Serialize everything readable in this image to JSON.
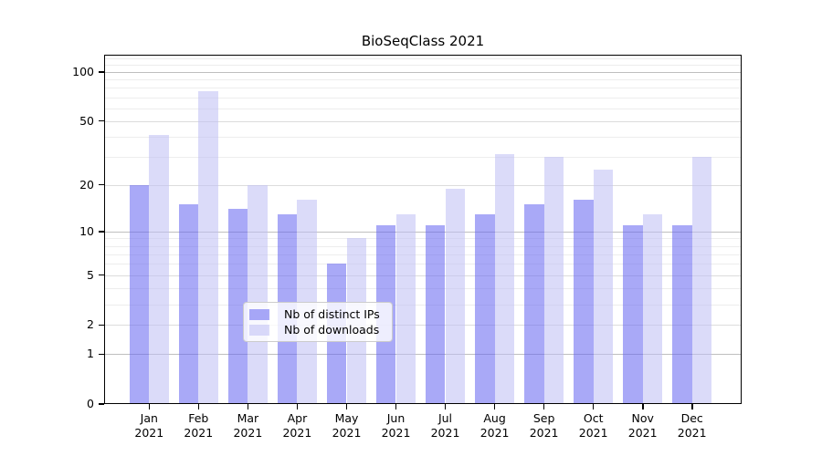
{
  "chart_data": {
    "type": "bar",
    "title": "BioSeqClass 2021",
    "x_months": [
      "Jan",
      "Feb",
      "Mar",
      "Apr",
      "May",
      "Jun",
      "Jul",
      "Aug",
      "Sep",
      "Oct",
      "Nov",
      "Dec"
    ],
    "x_year": "2021",
    "categories": [
      "Jan 2021",
      "Feb 2021",
      "Mar 2021",
      "Apr 2021",
      "May 2021",
      "Jun 2021",
      "Jul 2021",
      "Aug 2021",
      "Sep 2021",
      "Oct 2021",
      "Nov 2021",
      "Dec 2021"
    ],
    "series": [
      {
        "name": "Nb of distinct IPs",
        "key": "distinct-ips",
        "color": "rgba(104,104,241,0.57)",
        "color_hex_on_white": "#a9a9f6",
        "values": [
          20,
          15,
          14,
          13,
          6,
          11,
          11,
          13,
          15,
          16,
          11,
          11
        ]
      },
      {
        "name": "Nb of downloads",
        "key": "downloads",
        "color": "rgba(192,192,244,0.57)",
        "color_hex_on_white": "#dbdbf9",
        "values": [
          41,
          76,
          20,
          16,
          9,
          13,
          19,
          31,
          30,
          25,
          13,
          30
        ]
      }
    ],
    "y_axis": {
      "scale": "log1p",
      "labeled_ticks": [
        0,
        1,
        2,
        5,
        10,
        20,
        50,
        100
      ],
      "decade_gridlines": [
        1,
        10,
        100
      ],
      "labeled_gridlines": [
        2,
        5,
        20,
        50
      ],
      "minor_gridlines": [
        3,
        4,
        6,
        7,
        8,
        9,
        30,
        40,
        60,
        70,
        80,
        90,
        110,
        120
      ],
      "ymax": 127
    },
    "legend": {
      "location": "lower center",
      "entries": [
        "Nb of distinct IPs",
        "Nb of downloads"
      ]
    },
    "grid": true
  },
  "colors": {
    "background": "#ffffff",
    "axis_spine": "#000000",
    "grid_decade": "#bfbfbf",
    "grid_labeled": "#dcdcdc",
    "grid_minor": "#ededed",
    "bar_distinct_ips": "#a9a9f6",
    "bar_downloads": "#dbdbf9",
    "text": "#000000"
  }
}
